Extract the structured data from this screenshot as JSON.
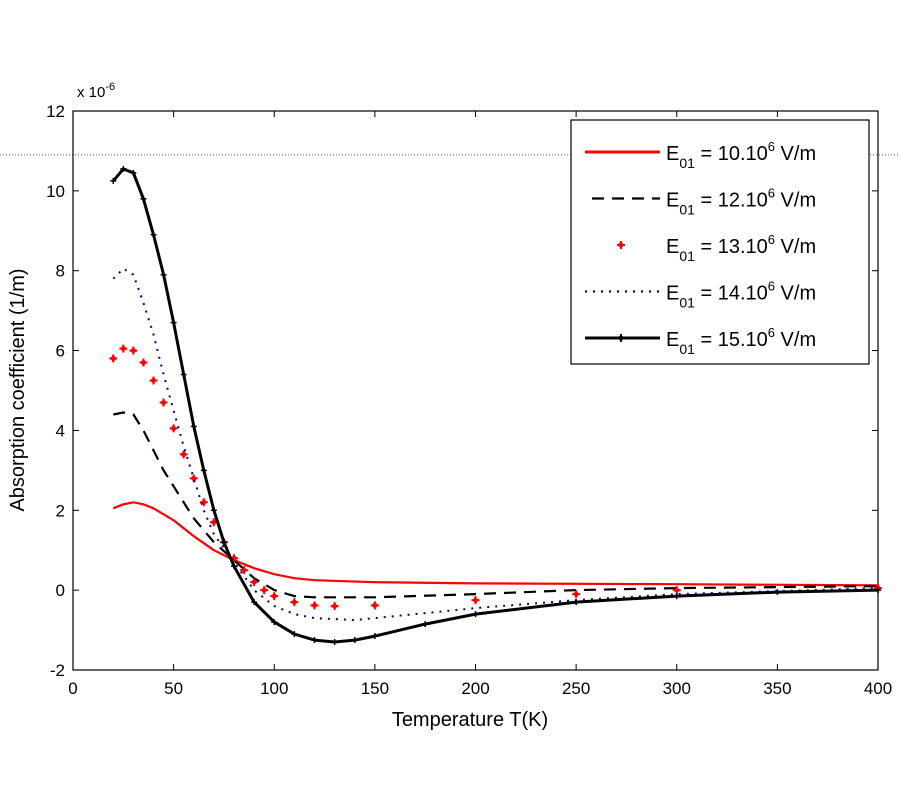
{
  "chart_data": {
    "type": "line",
    "title": "",
    "xlabel": "Temperature T(K)",
    "ylabel": "Absorption coefficient (1/m)",
    "y_multiplier": "x 10",
    "y_multiplier_exp": "-6",
    "xlim": [
      0,
      400
    ],
    "ylim": [
      -2,
      12
    ],
    "xticks": [
      0,
      50,
      100,
      150,
      200,
      250,
      300,
      350,
      400
    ],
    "yticks": [
      -2,
      0,
      2,
      4,
      6,
      8,
      10,
      12
    ],
    "grid": false,
    "legend_position": "top-right",
    "reference_line_y": 10.9,
    "series": [
      {
        "name": "E01 = 10.10^6 V/m",
        "label_main": "E",
        "label_sub": "01",
        "label_rest": " = 10.10",
        "label_sup": "6",
        "label_unit": " V/m",
        "color": "#ff0000",
        "style": "solid",
        "x": [
          20,
          25,
          30,
          35,
          40,
          50,
          60,
          70,
          80,
          90,
          100,
          110,
          120,
          150,
          200,
          300,
          400
        ],
        "y": [
          2.05,
          2.15,
          2.2,
          2.15,
          2.05,
          1.75,
          1.35,
          1.0,
          0.75,
          0.55,
          0.4,
          0.3,
          0.25,
          0.2,
          0.17,
          0.15,
          0.12
        ]
      },
      {
        "name": "E01 = 12.10^6 V/m",
        "label_main": "E",
        "label_sub": "01",
        "label_rest": " = 12.10",
        "label_sup": "6",
        "label_unit": " V/m",
        "color": "#000000",
        "style": "dashed",
        "x": [
          20,
          25,
          30,
          35,
          40,
          45,
          50,
          55,
          60,
          65,
          70,
          80,
          90,
          100,
          110,
          120,
          150,
          200,
          250,
          300,
          400
        ],
        "y": [
          4.4,
          4.45,
          4.4,
          4.0,
          3.5,
          3.0,
          2.6,
          2.2,
          1.8,
          1.5,
          1.2,
          0.75,
          0.3,
          0.0,
          -0.15,
          -0.18,
          -0.18,
          -0.1,
          0.0,
          0.05,
          0.1
        ]
      },
      {
        "name": "E01 = 13.10^6 V/m",
        "label_main": "E",
        "label_sub": "01",
        "label_rest": " = 13.10",
        "label_sup": "6",
        "label_unit": " V/m",
        "color": "#ff0000",
        "style": "markers",
        "x": [
          20,
          25,
          30,
          35,
          40,
          45,
          50,
          55,
          60,
          65,
          70,
          75,
          80,
          85,
          90,
          95,
          100,
          110,
          120,
          130,
          150,
          200,
          250,
          300,
          400
        ],
        "y": [
          5.8,
          6.05,
          6.0,
          5.7,
          5.25,
          4.7,
          4.05,
          3.4,
          2.8,
          2.2,
          1.7,
          1.2,
          0.8,
          0.5,
          0.2,
          0.0,
          -0.15,
          -0.3,
          -0.38,
          -0.4,
          -0.38,
          -0.25,
          -0.1,
          0.0,
          0.05
        ]
      },
      {
        "name": "E01 = 14.10^6 V/m",
        "label_main": "E",
        "label_sub": "01",
        "label_rest": " = 14.10",
        "label_sup": "6",
        "label_unit": " V/m",
        "color": "#00008b",
        "style": "dotted",
        "x": [
          20,
          25,
          30,
          35,
          40,
          45,
          50,
          55,
          60,
          65,
          70,
          80,
          90,
          100,
          110,
          120,
          140,
          150,
          200,
          250,
          300,
          400
        ],
        "y": [
          7.8,
          8.05,
          7.9,
          7.2,
          6.4,
          5.4,
          4.5,
          3.6,
          2.8,
          2.0,
          1.4,
          0.7,
          0.0,
          -0.4,
          -0.6,
          -0.7,
          -0.75,
          -0.7,
          -0.45,
          -0.25,
          -0.1,
          0.05
        ]
      },
      {
        "name": "E01 = 15.10^6 V/m",
        "label_main": "E",
        "label_sub": "01",
        "label_rest": " = 15.10",
        "label_sup": "6",
        "label_unit": " V/m",
        "color": "#000000",
        "style": "solid-marker",
        "x": [
          20,
          25,
          30,
          35,
          40,
          45,
          50,
          55,
          60,
          65,
          70,
          75,
          80,
          90,
          100,
          110,
          120,
          130,
          140,
          150,
          175,
          200,
          250,
          300,
          350,
          400
        ],
        "y": [
          10.25,
          10.55,
          10.45,
          9.8,
          8.9,
          7.9,
          6.7,
          5.4,
          4.1,
          3.0,
          2.0,
          1.2,
          0.6,
          -0.3,
          -0.8,
          -1.1,
          -1.25,
          -1.3,
          -1.25,
          -1.15,
          -0.85,
          -0.6,
          -0.3,
          -0.15,
          -0.05,
          0.0
        ]
      }
    ]
  }
}
